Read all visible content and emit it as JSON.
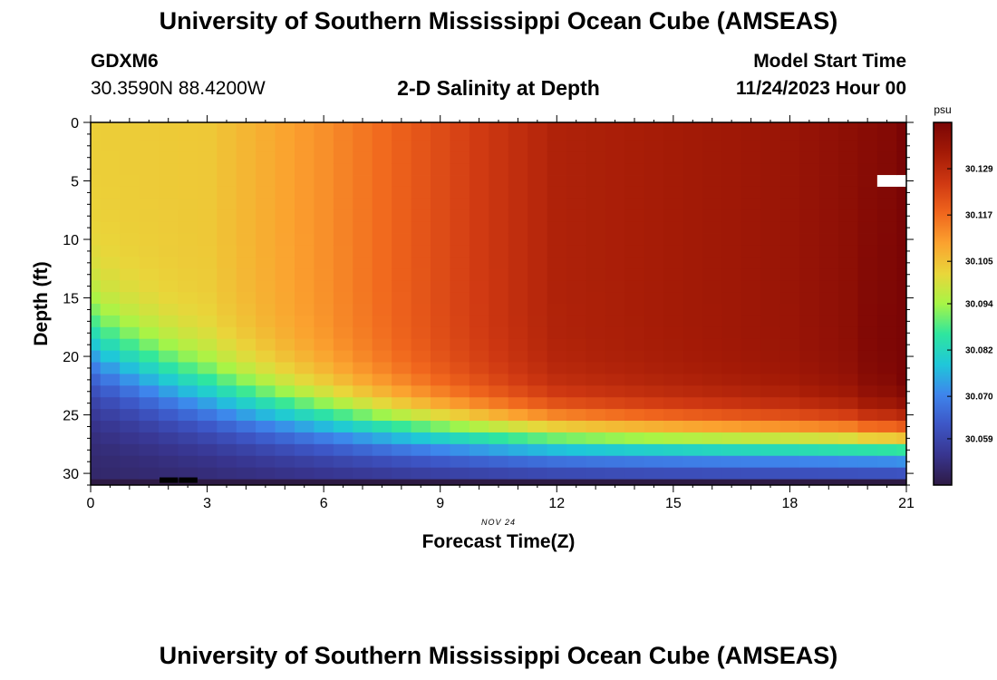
{
  "header": {
    "title": "University of Southern Mississippi Ocean Cube (AMSEAS)",
    "station": "GDXM6",
    "coords": "30.3590N  88.4200W",
    "plot_title": "2-D Salinity at Depth",
    "start_label": "Model Start Time",
    "start_value": "11/24/2023 Hour 00"
  },
  "footer": {
    "title": "University of Southern Mississippi Ocean Cube (AMSEAS)"
  },
  "chart_data": {
    "type": "heatmap",
    "title": "2-D Salinity at Depth",
    "xlabel": "Forecast Time(Z)",
    "ylabel": "Depth (ft)",
    "x_date_label": "NOV 24",
    "xlim": [
      0,
      21
    ],
    "ylim": [
      0,
      31
    ],
    "y_inverted": true,
    "xticks": [
      0,
      3,
      6,
      9,
      12,
      15,
      18,
      21
    ],
    "yticks": [
      0,
      5,
      10,
      15,
      20,
      25,
      30
    ],
    "x_step": 0.5,
    "y_step": 1,
    "colorbar": {
      "unit": "psu",
      "range": [
        30.047,
        30.141
      ],
      "tick_labels": [
        "30.129",
        "30.117",
        "30.105",
        "30.094",
        "30.082",
        "30.070",
        "30.059"
      ],
      "colors": [
        "#2e1a44",
        "#38358f",
        "#3d56c6",
        "#3e85ec",
        "#1fc7d9",
        "#2fe69e",
        "#a7f546",
        "#e9d63a",
        "#fba22f",
        "#f0661d",
        "#cf3812",
        "#a31a06",
        "#7a0505"
      ]
    },
    "surface_field": {
      "description": "salinity (psu) by forecast hour x depth row",
      "upper_layer_times": [
        0,
        3,
        6,
        9,
        12,
        15,
        18,
        20.5,
        21
      ],
      "upper_layer_values": [
        30.103,
        30.104,
        30.112,
        30.122,
        30.131,
        30.133,
        30.135,
        30.139,
        30.141
      ],
      "bottom_layer_value": 30.05,
      "missing_cells": [
        [
          2,
          30.5
        ],
        [
          2.5,
          30.5
        ],
        [
          20.5,
          5
        ],
        [
          21,
          5
        ]
      ]
    }
  }
}
